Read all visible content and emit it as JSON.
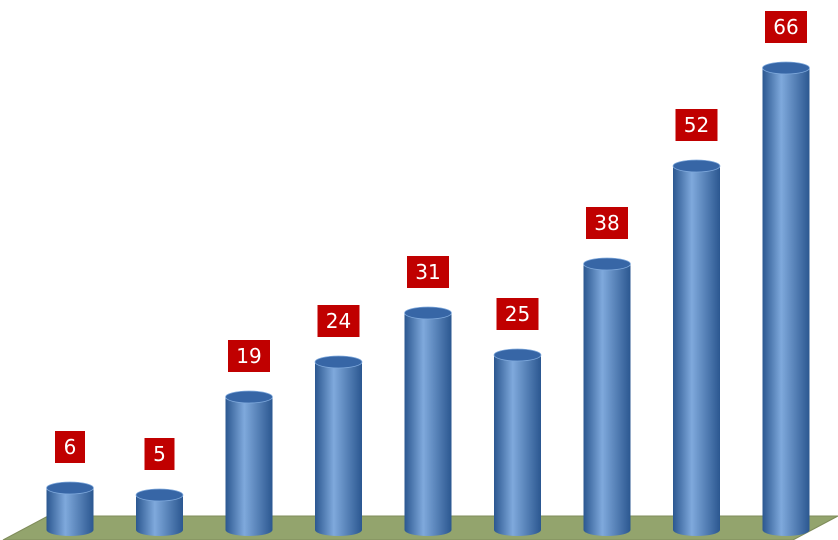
{
  "chart_data": {
    "type": "bar",
    "style": "3d-cylinder",
    "categories": [
      "",
      "",
      "",
      "",
      "",
      "",
      "",
      "",
      ""
    ],
    "values": [
      6,
      5,
      19,
      24,
      31,
      25,
      38,
      52,
      66
    ],
    "data_labels": [
      "6",
      "5",
      "19",
      "24",
      "31",
      "25",
      "38",
      "52",
      "66"
    ],
    "title": "",
    "xlabel": "",
    "ylabel": "",
    "legend": "none",
    "grid": false,
    "colors": {
      "bar": "#4a7ebb",
      "bar_dark": "#2b5790",
      "bar_light": "#7fa9dc",
      "bar_top": "#3766a6",
      "label_background": "#c00000",
      "label_text": "#ffffff",
      "floor": "#93a46d"
    }
  }
}
